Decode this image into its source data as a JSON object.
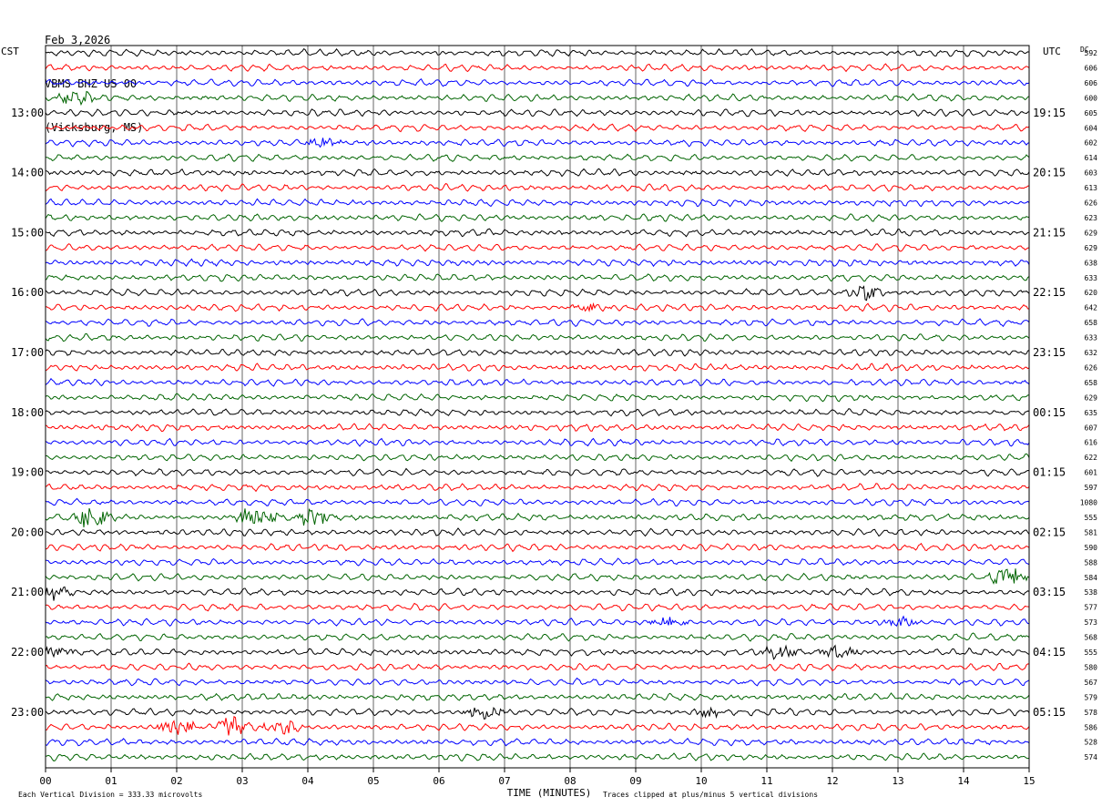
{
  "header": {
    "date": "Feb 3,2026",
    "station": "VBMS BHZ US 00",
    "location": "(Vicksburg, MS)"
  },
  "labels": {
    "left_tz": "CST",
    "right_tz": "UTC",
    "dc_header": "DC",
    "xlabel": "TIME (MINUTES)",
    "scale_note": "Each Vertical Division =  333.33 microvolts",
    "clip_note": "Traces clipped at plus/minus 5 vertical divisions"
  },
  "chart_data": {
    "type": "line",
    "title": "Feb 3,2026 VBMS BHZ US 00 (Vicksburg, MS)",
    "xlabel": "TIME (MINUTES)",
    "xlim": [
      0,
      15
    ],
    "x_ticks": [
      "00",
      "01",
      "02",
      "03",
      "04",
      "05",
      "06",
      "07",
      "08",
      "09",
      "10",
      "11",
      "12",
      "13",
      "14",
      "15"
    ],
    "grid": "vertical lines at each minute",
    "trace_colors": [
      "#000000",
      "#ff0000",
      "#0000ff",
      "#006400"
    ],
    "traces_per_hour": 4,
    "minutes_per_trace": 15,
    "left_time_labels": [
      "13:00",
      "14:00",
      "15:00",
      "16:00",
      "17:00",
      "18:00",
      "19:00",
      "20:00",
      "21:00",
      "22:00",
      "23:00"
    ],
    "right_time_labels": [
      "19:15",
      "20:15",
      "21:15",
      "22:15",
      "23:15",
      "00:15",
      "01:15",
      "02:15",
      "03:15",
      "04:15",
      "05:15"
    ],
    "dc_offsets": [
      "592",
      "606",
      "606",
      "600",
      "605",
      "604",
      "602",
      "614",
      "603",
      "613",
      "626",
      "623",
      "629",
      "629",
      "638",
      "633",
      "620",
      "642",
      "658",
      "633",
      "632",
      "626",
      "658",
      "629",
      "635",
      "607",
      "616",
      "622",
      "601",
      "597",
      "1080",
      "555",
      "581",
      "590",
      "588",
      "584",
      "538",
      "577",
      "573",
      "568",
      "555",
      "580",
      "567",
      "579",
      "578",
      "586",
      "528",
      "574"
    ],
    "events": [
      {
        "trace": 3,
        "minute": 0.5,
        "amp": 3
      },
      {
        "trace": 6,
        "minute": 4.2,
        "amp": 2
      },
      {
        "trace": 16,
        "minute": 12.5,
        "amp": 2.5
      },
      {
        "trace": 17,
        "minute": 8.3,
        "amp": 2
      },
      {
        "trace": 31,
        "minute": 0.7,
        "amp": 4
      },
      {
        "trace": 31,
        "minute": 3.2,
        "amp": 5
      },
      {
        "trace": 31,
        "minute": 4.1,
        "amp": 4
      },
      {
        "trace": 35,
        "minute": 14.7,
        "amp": 3.5
      },
      {
        "trace": 36,
        "minute": 0.1,
        "amp": 3
      },
      {
        "trace": 38,
        "minute": 9.5,
        "amp": 2.2
      },
      {
        "trace": 38,
        "minute": 13.0,
        "amp": 2
      },
      {
        "trace": 40,
        "minute": 0.1,
        "amp": 3
      },
      {
        "trace": 40,
        "minute": 11.2,
        "amp": 2.5
      },
      {
        "trace": 40,
        "minute": 12.1,
        "amp": 2.5
      },
      {
        "trace": 44,
        "minute": 6.7,
        "amp": 3
      },
      {
        "trace": 44,
        "minute": 10.1,
        "amp": 2
      },
      {
        "trace": 45,
        "minute": 2.0,
        "amp": 4
      },
      {
        "trace": 45,
        "minute": 2.8,
        "amp": 5
      },
      {
        "trace": 45,
        "minute": 3.6,
        "amp": 3
      }
    ]
  }
}
